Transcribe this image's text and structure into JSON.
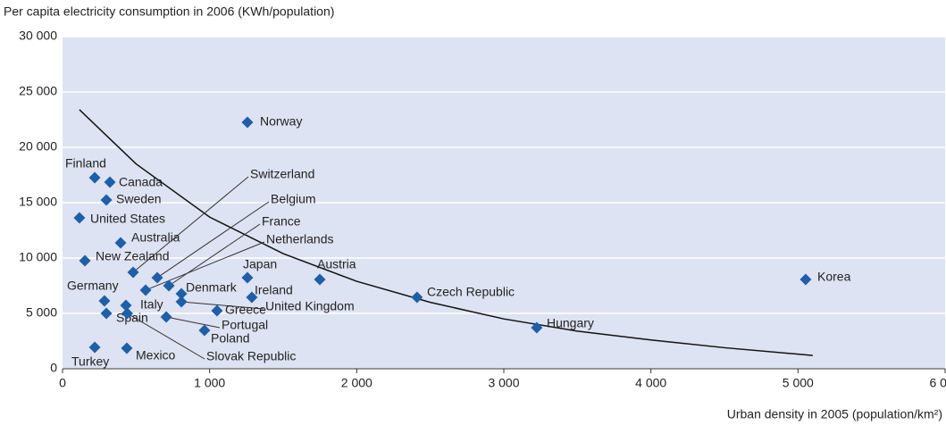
{
  "chart_data": {
    "type": "scatter",
    "ylabel": "Per capita electricity consumption in 2006 (KWh/population)",
    "xlabel": "Urban density in 2005 (population/km²)",
    "labels": [
      "Norway",
      "Finland",
      "Canada",
      "Sweden",
      "United States",
      "Australia",
      "New Zealand",
      "Switzerland",
      "Belgium",
      "France",
      "Netherlands",
      "Denmark",
      "Japan",
      "Austria",
      "Ireland",
      "United Kingdom",
      "Germany",
      "Italy",
      "Spain",
      "Greece",
      "Portugal",
      "Poland",
      "Slovak Republic",
      "Mexico",
      "Turkey",
      "Czech Republic",
      "Hungary",
      "Korea"
    ],
    "x": [
      1257,
      219,
      322,
      298,
      115,
      395,
      152,
      480,
      644,
      723,
      565,
      808,
      1257,
      1749,
      1287,
      808,
      285,
      431,
      298,
      1050,
      705,
      965,
      440,
      437,
      219,
      2410,
      3224,
      5052
    ],
    "values": [
      22260,
      17260,
      16850,
      15240,
      13630,
      11370,
      9760,
      8710,
      8230,
      7500,
      7100,
      6770,
      8230,
      8060,
      6450,
      6050,
      6130,
      5730,
      5000,
      5240,
      4680,
      3470,
      5000,
      1850,
      1940,
      6450,
      3710,
      8060
    ],
    "color": "#1f5fa8",
    "trendline": {
      "x": [
        115,
        500,
        1000,
        1500,
        2000,
        2500,
        3000,
        3500,
        4000,
        4500,
        5100
      ],
      "y": [
        23400,
        18500,
        13700,
        10400,
        7900,
        6000,
        4500,
        3400,
        2600,
        1900,
        1200
      ]
    },
    "xlim": [
      0,
      6000
    ],
    "xticks": [
      0,
      {
        "value": 1000,
        "label": "1 000"
      },
      {
        "value": 2000,
        "label": "2 000"
      },
      {
        "value": 3000,
        "label": "3 000"
      },
      {
        "value": 4000,
        "label": "4 000"
      },
      {
        "value": 5000,
        "label": "5 000"
      },
      {
        "value": 6000,
        "label": "6 000"
      }
    ],
    "ylim": [
      0,
      30000
    ],
    "yticks": [
      0,
      {
        "value": 5000,
        "label": "5 000"
      },
      {
        "value": 10000,
        "label": "10 000"
      },
      {
        "value": 15000,
        "label": "15 000"
      },
      {
        "value": 20000,
        "label": "20 000"
      },
      {
        "value": 25000,
        "label": "25 000"
      },
      {
        "value": 30000,
        "label": "30 000"
      }
    ],
    "grid": true
  }
}
